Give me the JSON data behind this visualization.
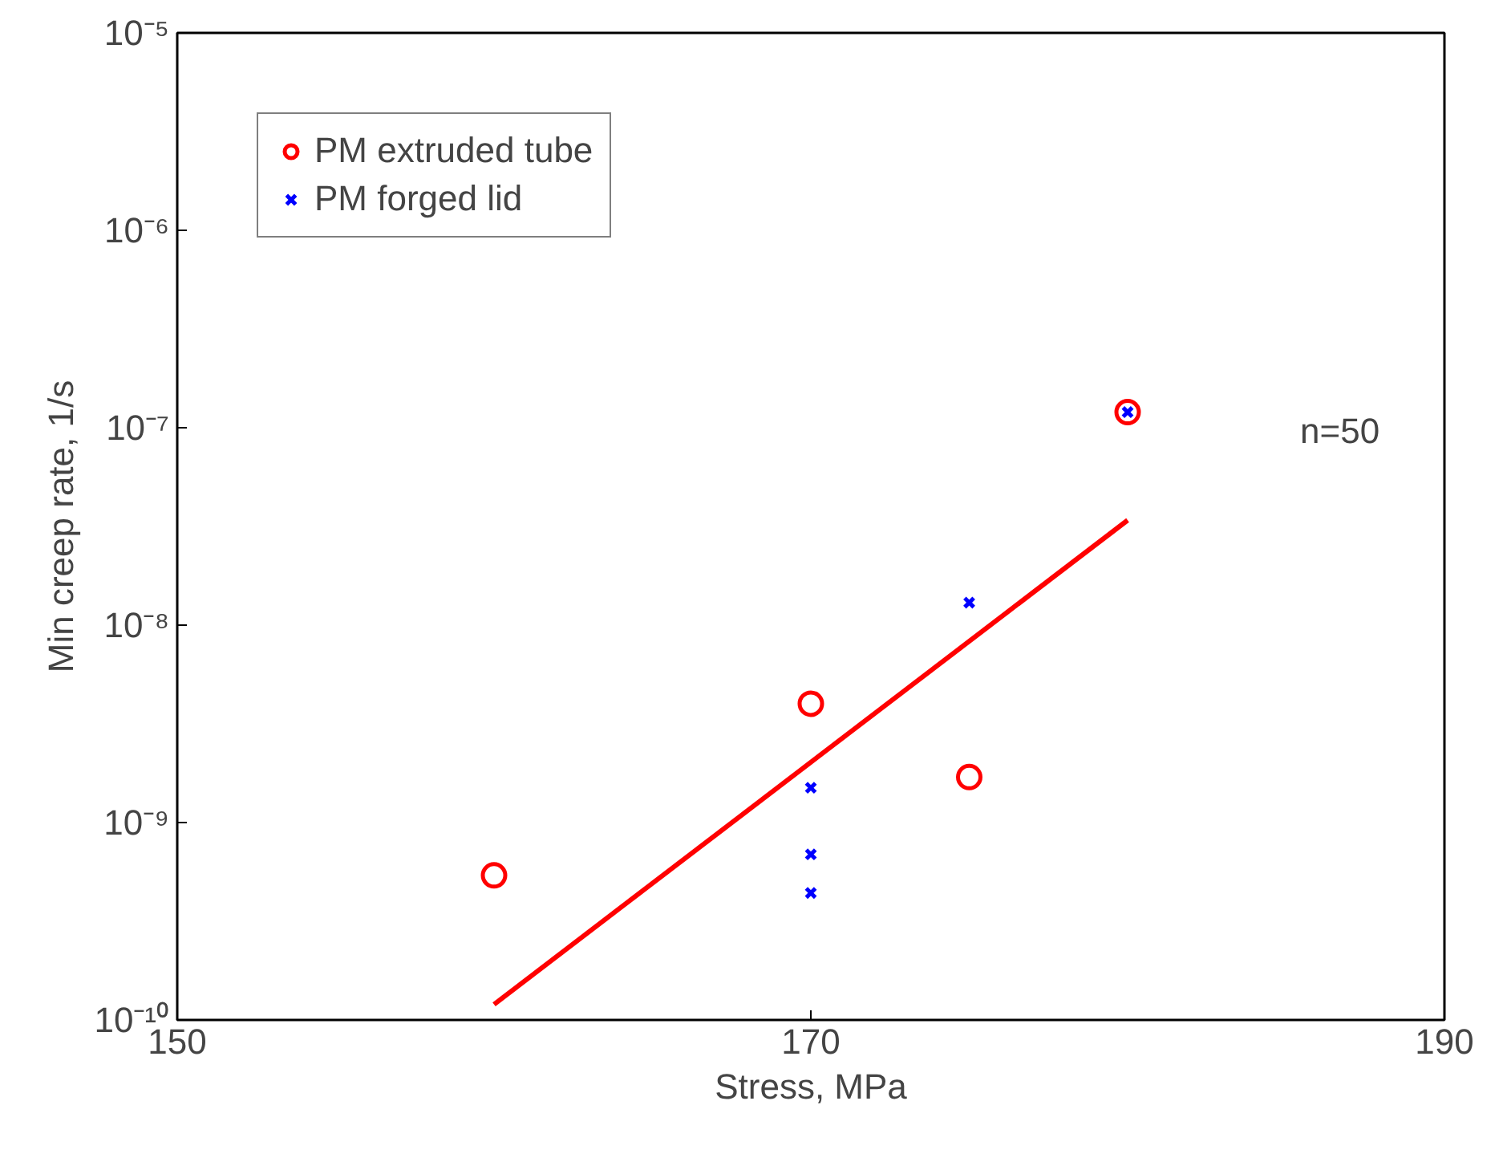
{
  "chart_data": {
    "type": "scatter",
    "xlabel": "Stress, MPa",
    "ylabel": "Min creep rate, 1/s",
    "xlim": [
      150,
      190
    ],
    "xticks": [
      150,
      170,
      190
    ],
    "ylim": [
      1e-10,
      1e-05
    ],
    "yticks": [
      {
        "value": 1e-10,
        "label": "10⁻¹⁰"
      },
      {
        "value": 1e-09,
        "label": "10⁻⁹"
      },
      {
        "value": 1e-08,
        "label": "10⁻⁸"
      },
      {
        "value": 1e-07,
        "label": "10⁻⁷"
      },
      {
        "value": 1e-06,
        "label": "10⁻⁶"
      },
      {
        "value": 1e-05,
        "label": "10⁻⁵"
      }
    ],
    "log": "y",
    "grid": false,
    "legend": "top left",
    "series": [
      {
        "name": "PM extruded tube",
        "marker": "circle",
        "color": "#ff0000",
        "x": [
          160,
          170,
          175,
          180
        ],
        "values": [
          5.4e-10,
          4e-09,
          1.7e-09,
          1.2e-07
        ]
      },
      {
        "name": "PM forged lid",
        "marker": "cross",
        "color": "#0000ff",
        "x": [
          170,
          170,
          170,
          175,
          180
        ],
        "values": [
          1.5e-09,
          6.9e-10,
          4.4e-10,
          1.3e-08,
          1.2e-07
        ]
      },
      {
        "type": "line",
        "color": "#ff0000",
        "x": [
          160,
          180
        ],
        "values": [
          1.2e-10,
          3.4e-08
        ]
      }
    ],
    "annotations": [
      "n=50"
    ]
  }
}
